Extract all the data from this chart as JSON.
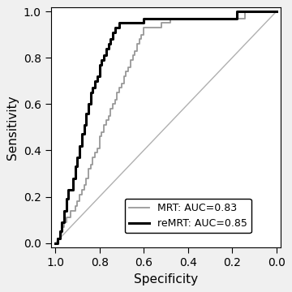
{
  "title": "",
  "xlabel": "Specificity",
  "ylabel": "Sensitivity",
  "xlim": [
    1.02,
    -0.02
  ],
  "ylim": [
    -0.02,
    1.02
  ],
  "xticks": [
    1.0,
    0.8,
    0.6,
    0.4,
    0.2,
    0.0
  ],
  "yticks": [
    0.0,
    0.2,
    0.4,
    0.6,
    0.8,
    1.0
  ],
  "diagonal_color": "#b0b0b0",
  "mrt_color": "#999999",
  "remrt_color": "#000000",
  "mrt_linewidth": 1.3,
  "remrt_linewidth": 2.2,
  "legend_labels": [
    "MRT: AUC=0.83",
    "reMRT: AUC=0.85"
  ],
  "background_color": "#ffffff",
  "mrt_x": [
    1.0,
    0.99,
    0.99,
    0.98,
    0.98,
    0.97,
    0.97,
    0.96,
    0.96,
    0.95,
    0.95,
    0.94,
    0.93,
    0.93,
    0.92,
    0.91,
    0.91,
    0.9,
    0.9,
    0.89,
    0.89,
    0.88,
    0.88,
    0.87,
    0.87,
    0.86,
    0.86,
    0.85,
    0.85,
    0.85,
    0.84,
    0.84,
    0.83,
    0.83,
    0.82,
    0.82,
    0.81,
    0.81,
    0.8,
    0.8,
    0.8,
    0.79,
    0.79,
    0.78,
    0.78,
    0.77,
    0.77,
    0.76,
    0.76,
    0.75,
    0.75,
    0.74,
    0.74,
    0.73,
    0.73,
    0.72,
    0.72,
    0.71,
    0.71,
    0.7,
    0.7,
    0.69,
    0.69,
    0.68,
    0.68,
    0.67,
    0.67,
    0.66,
    0.66,
    0.65,
    0.65,
    0.64,
    0.64,
    0.63,
    0.63,
    0.62,
    0.62,
    0.61,
    0.61,
    0.6,
    0.6,
    0.59,
    0.58,
    0.57,
    0.56,
    0.55,
    0.54,
    0.53,
    0.52,
    0.51,
    0.5,
    0.49,
    0.48,
    0.47,
    0.46,
    0.45,
    0.44,
    0.43,
    0.42,
    0.4,
    0.38,
    0.36,
    0.34,
    0.32,
    0.3,
    0.28,
    0.26,
    0.24,
    0.22,
    0.2,
    0.18,
    0.16,
    0.14,
    0.12,
    0.1,
    0.08,
    0.06,
    0.04,
    0.02,
    0.0
  ],
  "mrt_y": [
    0.0,
    0.0,
    0.02,
    0.02,
    0.04,
    0.04,
    0.07,
    0.07,
    0.09,
    0.09,
    0.11,
    0.11,
    0.11,
    0.14,
    0.14,
    0.14,
    0.16,
    0.16,
    0.18,
    0.18,
    0.21,
    0.21,
    0.23,
    0.23,
    0.25,
    0.25,
    0.28,
    0.28,
    0.3,
    0.32,
    0.32,
    0.34,
    0.34,
    0.37,
    0.37,
    0.39,
    0.39,
    0.41,
    0.41,
    0.44,
    0.46,
    0.46,
    0.48,
    0.48,
    0.51,
    0.51,
    0.53,
    0.53,
    0.55,
    0.55,
    0.58,
    0.58,
    0.6,
    0.6,
    0.62,
    0.62,
    0.65,
    0.65,
    0.67,
    0.67,
    0.69,
    0.69,
    0.72,
    0.72,
    0.74,
    0.74,
    0.76,
    0.76,
    0.79,
    0.79,
    0.81,
    0.81,
    0.83,
    0.83,
    0.86,
    0.86,
    0.88,
    0.88,
    0.9,
    0.9,
    0.93,
    0.93,
    0.93,
    0.93,
    0.93,
    0.93,
    0.93,
    0.93,
    0.95,
    0.95,
    0.95,
    0.95,
    0.97,
    0.97,
    0.97,
    0.97,
    0.97,
    0.97,
    0.97,
    0.97,
    0.97,
    0.97,
    0.97,
    0.97,
    0.97,
    0.97,
    0.97,
    0.97,
    0.97,
    0.97,
    0.97,
    0.97,
    1.0,
    1.0,
    1.0,
    1.0,
    1.0,
    1.0,
    1.0,
    1.0
  ],
  "remrt_x": [
    1.0,
    0.99,
    0.99,
    0.98,
    0.98,
    0.97,
    0.97,
    0.96,
    0.96,
    0.95,
    0.95,
    0.94,
    0.94,
    0.93,
    0.92,
    0.92,
    0.91,
    0.91,
    0.9,
    0.9,
    0.89,
    0.89,
    0.88,
    0.88,
    0.87,
    0.87,
    0.86,
    0.86,
    0.85,
    0.85,
    0.84,
    0.84,
    0.83,
    0.83,
    0.82,
    0.82,
    0.81,
    0.81,
    0.8,
    0.8,
    0.8,
    0.79,
    0.79,
    0.78,
    0.78,
    0.77,
    0.77,
    0.76,
    0.76,
    0.75,
    0.75,
    0.74,
    0.74,
    0.73,
    0.73,
    0.72,
    0.71,
    0.71,
    0.7,
    0.7,
    0.69,
    0.69,
    0.68,
    0.68,
    0.67,
    0.67,
    0.66,
    0.66,
    0.65,
    0.65,
    0.64,
    0.64,
    0.63,
    0.63,
    0.62,
    0.62,
    0.61,
    0.61,
    0.6,
    0.6,
    0.59,
    0.58,
    0.57,
    0.56,
    0.55,
    0.54,
    0.53,
    0.52,
    0.51,
    0.5,
    0.48,
    0.46,
    0.44,
    0.42,
    0.4,
    0.38,
    0.36,
    0.34,
    0.32,
    0.3,
    0.28,
    0.26,
    0.24,
    0.22,
    0.2,
    0.18,
    0.16,
    0.14,
    0.12,
    0.1,
    0.08,
    0.06,
    0.04,
    0.02,
    0.0
  ],
  "remrt_y": [
    0.0,
    0.0,
    0.02,
    0.02,
    0.05,
    0.05,
    0.09,
    0.09,
    0.14,
    0.14,
    0.19,
    0.19,
    0.23,
    0.23,
    0.23,
    0.28,
    0.28,
    0.33,
    0.33,
    0.37,
    0.37,
    0.42,
    0.42,
    0.47,
    0.47,
    0.51,
    0.51,
    0.56,
    0.56,
    0.6,
    0.6,
    0.65,
    0.65,
    0.67,
    0.67,
    0.7,
    0.7,
    0.72,
    0.72,
    0.74,
    0.77,
    0.77,
    0.79,
    0.79,
    0.81,
    0.81,
    0.84,
    0.84,
    0.86,
    0.86,
    0.88,
    0.88,
    0.91,
    0.91,
    0.93,
    0.93,
    0.93,
    0.95,
    0.95,
    0.95,
    0.95,
    0.95,
    0.95,
    0.95,
    0.95,
    0.95,
    0.95,
    0.95,
    0.95,
    0.95,
    0.95,
    0.95,
    0.95,
    0.95,
    0.95,
    0.95,
    0.95,
    0.95,
    0.97,
    0.97,
    0.97,
    0.97,
    0.97,
    0.97,
    0.97,
    0.97,
    0.97,
    0.97,
    0.97,
    0.97,
    0.97,
    0.97,
    0.97,
    0.97,
    0.97,
    0.97,
    0.97,
    0.97,
    0.97,
    0.97,
    0.97,
    0.97,
    0.97,
    0.97,
    0.97,
    1.0,
    1.0,
    1.0,
    1.0,
    1.0,
    1.0,
    1.0,
    1.0,
    1.0,
    1.0
  ],
  "font_size": 11,
  "tick_font_size": 10,
  "figure_facecolor": "#f0f0f0"
}
